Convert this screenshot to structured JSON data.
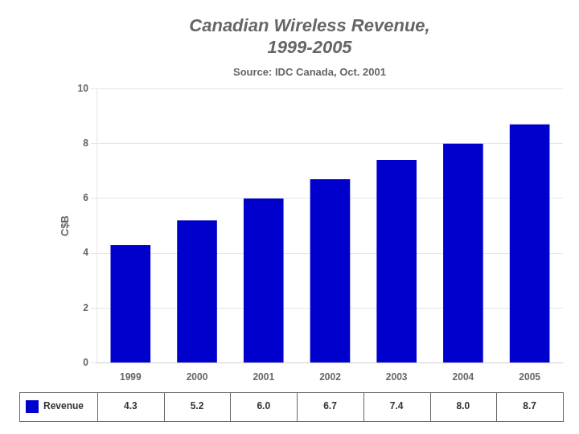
{
  "chart_data": {
    "type": "bar",
    "title": [
      "Canadian Wireless Revenue,",
      "1999-2005"
    ],
    "subtitle": "Source: IDC Canada, Oct. 2001",
    "ylabel": "C$B",
    "categories": [
      "1999",
      "2000",
      "2001",
      "2002",
      "2003",
      "2004",
      "2005"
    ],
    "series": [
      {
        "name": "Revenue",
        "color": "#0000CC",
        "values": [
          4.3,
          5.2,
          6.0,
          6.7,
          7.4,
          8.0,
          8.7
        ],
        "value_labels": [
          "4.3",
          "5.2",
          "6.0",
          "6.7",
          "7.4",
          "8.0",
          "8.7"
        ]
      }
    ],
    "ylim": [
      0,
      10
    ],
    "yticks": [
      0,
      2,
      4,
      6,
      8,
      10
    ],
    "grid": true,
    "legend": "bottom",
    "data_labels": true
  }
}
